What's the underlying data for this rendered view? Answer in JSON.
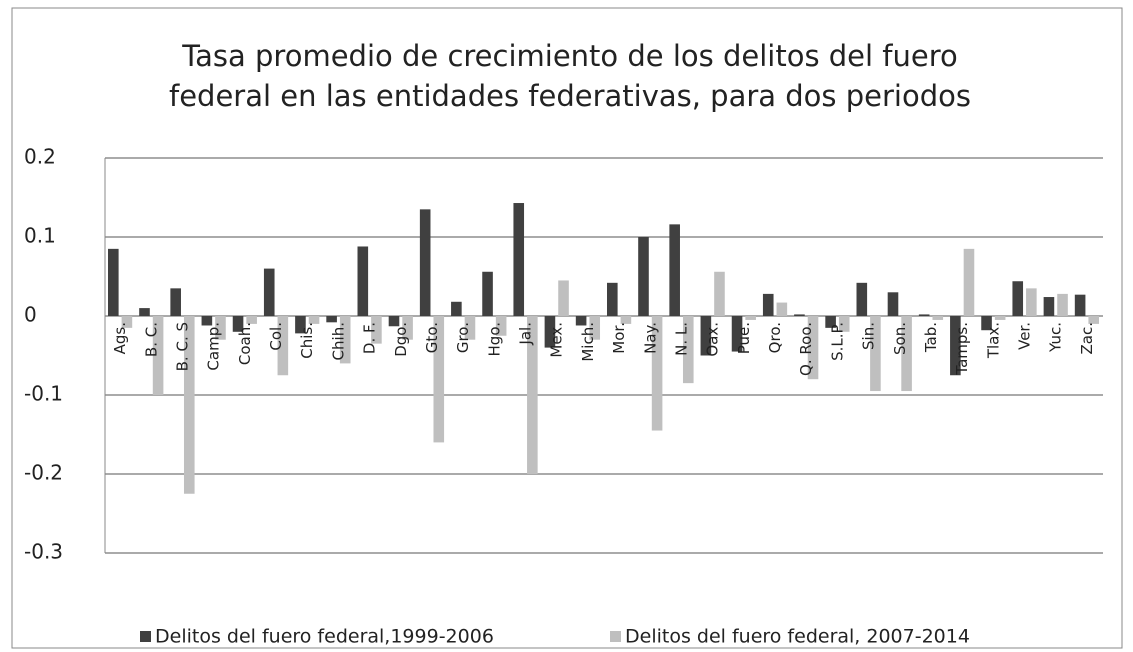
{
  "chart_data": {
    "type": "bar",
    "title": "Tasa promedio de crecimiento de los delitos del fuero federal en las entidades federativas, para dos periodos",
    "categories": [
      "Ags.",
      "B. C.",
      "B. C. S",
      "Camp.",
      "Coah.",
      "Col.",
      "Chis.",
      "Chih.",
      "D. F.",
      "Dgo.",
      "Gto.",
      "Gro.",
      "Hgo.",
      "Jal.",
      "Mex.",
      "Mich.",
      "Mor.",
      "Nay.",
      "N. L.",
      "Oax.",
      "Pue.",
      "Qro.",
      "Q. Roo.",
      "S.L.P.",
      "Sin.",
      "Son.",
      "Tab.",
      "Tamps.",
      "Tlax.",
      "Ver.",
      "Yuc.",
      "Zac."
    ],
    "series": [
      {
        "name": "Delitos del fuero federal,1999-2006",
        "color": "#404040",
        "values": [
          0.085,
          0.01,
          0.035,
          -0.012,
          -0.02,
          0.06,
          -0.022,
          -0.008,
          0.088,
          -0.013,
          0.135,
          0.018,
          0.056,
          0.143,
          -0.04,
          -0.012,
          0.042,
          0.1,
          0.116,
          -0.05,
          -0.045,
          0.028,
          0.002,
          -0.015,
          0.042,
          0.03,
          0.002,
          -0.075,
          -0.018,
          0.044,
          0.024,
          0.027
        ]
      },
      {
        "name": "Delitos del fuero federal, 2007-2014",
        "color": "#bfbfbf",
        "values": [
          -0.015,
          -0.1,
          -0.225,
          -0.03,
          -0.01,
          -0.075,
          -0.01,
          -0.06,
          -0.035,
          -0.03,
          -0.16,
          -0.03,
          -0.025,
          -0.2,
          0.045,
          -0.03,
          -0.01,
          -0.145,
          -0.085,
          0.056,
          -0.005,
          0.017,
          -0.08,
          -0.02,
          -0.095,
          -0.095,
          -0.005,
          0.085,
          -0.005,
          0.035,
          0.028,
          -0.01
        ]
      }
    ],
    "ylim": [
      -0.3,
      0.2
    ],
    "yticks": [
      -0.3,
      -0.2,
      -0.1,
      0,
      0.1,
      0.2
    ],
    "grid": true,
    "legend": "bottom"
  }
}
